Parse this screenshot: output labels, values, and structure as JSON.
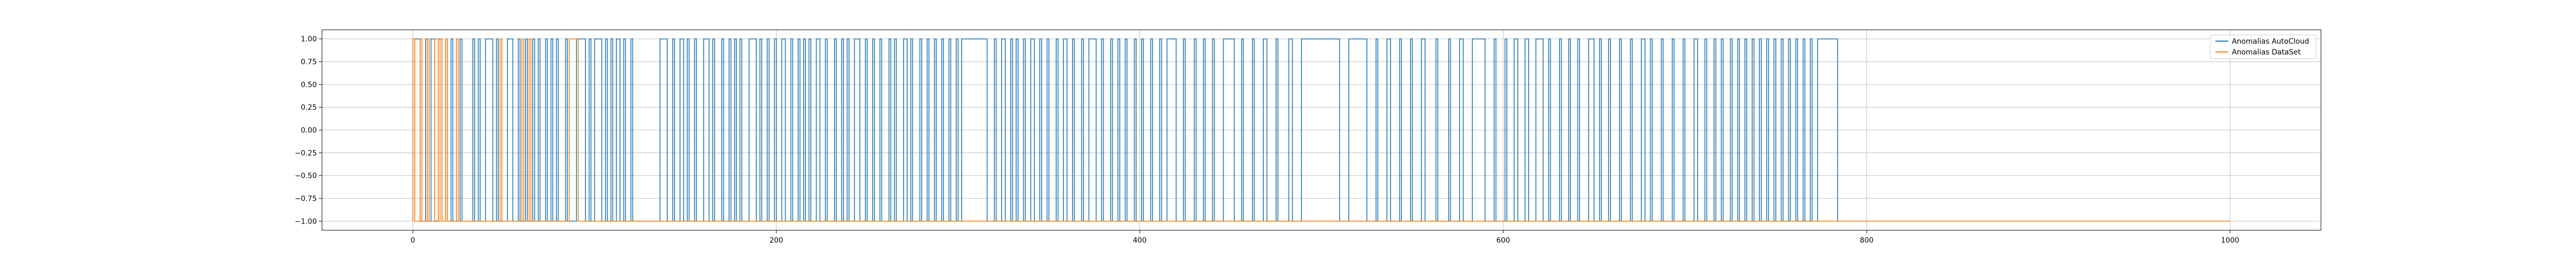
{
  "chart_data": {
    "type": "line",
    "title": "",
    "xlabel": "",
    "ylabel": "",
    "xlim": [
      -50,
      1050
    ],
    "ylim": [
      -1.1,
      1.1
    ],
    "grid": true,
    "legend_position": "top-right",
    "x_ticks": [
      0,
      200,
      400,
      600,
      800,
      1000
    ],
    "x_tick_labels": [
      "0",
      "200",
      "400",
      "600",
      "800",
      "1000"
    ],
    "y_ticks": [
      1.0,
      0.75,
      0.5,
      0.25,
      0.0,
      -0.25,
      -0.5,
      -0.75,
      -1.0
    ],
    "y_tick_labels": [
      "1.00",
      "0.75",
      "0.50",
      "0.25",
      "0.00",
      "−0.25",
      "−0.50",
      "−0.75",
      "−1.00"
    ],
    "series": [
      {
        "name": "Anomalias AutoCloud",
        "color": "#1f77b4",
        "x_range": [
          0,
          784
        ],
        "high_segments": [
          [
            0,
            4
          ],
          [
            7,
            8
          ],
          [
            10,
            12
          ],
          [
            14,
            16
          ],
          [
            18,
            19
          ],
          [
            21,
            22
          ],
          [
            26,
            27
          ],
          [
            33,
            34
          ],
          [
            36,
            37
          ],
          [
            40,
            44
          ],
          [
            46,
            47
          ],
          [
            52,
            55
          ],
          [
            58,
            59
          ],
          [
            62,
            63
          ],
          [
            66,
            67
          ],
          [
            69,
            70
          ],
          [
            73,
            74
          ],
          [
            76,
            77
          ],
          [
            79,
            80
          ],
          [
            84,
            85
          ],
          [
            90,
            95
          ],
          [
            97,
            98
          ],
          [
            100,
            104
          ],
          [
            106,
            107
          ],
          [
            109,
            110
          ],
          [
            112,
            114
          ],
          [
            116,
            117
          ],
          [
            120,
            121
          ],
          [
            136,
            140
          ],
          [
            143,
            144
          ],
          [
            147,
            149
          ],
          [
            151,
            152
          ],
          [
            155,
            156
          ],
          [
            160,
            163
          ],
          [
            165,
            166
          ],
          [
            170,
            171
          ],
          [
            174,
            175
          ],
          [
            177,
            178
          ],
          [
            180,
            181
          ],
          [
            185,
            189
          ],
          [
            191,
            192
          ],
          [
            195,
            196
          ],
          [
            199,
            200
          ],
          [
            203,
            205
          ],
          [
            208,
            209
          ],
          [
            212,
            213
          ],
          [
            215,
            216
          ],
          [
            218,
            219
          ],
          [
            222,
            224
          ],
          [
            227,
            228
          ],
          [
            232,
            233
          ],
          [
            236,
            237
          ],
          [
            239,
            240
          ],
          [
            243,
            246
          ],
          [
            249,
            250
          ],
          [
            253,
            254
          ],
          [
            257,
            258
          ],
          [
            262,
            263
          ],
          [
            265,
            266
          ],
          [
            270,
            272
          ],
          [
            274,
            275
          ],
          [
            279,
            280
          ],
          [
            283,
            284
          ],
          [
            287,
            288
          ],
          [
            291,
            292
          ],
          [
            295,
            296
          ],
          [
            299,
            300
          ],
          [
            302,
            316
          ],
          [
            320,
            321
          ],
          [
            324,
            326
          ],
          [
            329,
            330
          ],
          [
            332,
            333
          ],
          [
            336,
            337
          ],
          [
            340,
            342
          ],
          [
            345,
            346
          ],
          [
            349,
            350
          ],
          [
            354,
            355
          ],
          [
            358,
            360
          ],
          [
            363,
            364
          ],
          [
            368,
            369
          ],
          [
            372,
            376
          ],
          [
            379,
            380
          ],
          [
            384,
            385
          ],
          [
            388,
            389
          ],
          [
            392,
            393
          ],
          [
            397,
            398
          ],
          [
            401,
            402
          ],
          [
            406,
            407
          ],
          [
            411,
            412
          ],
          [
            415,
            420
          ],
          [
            424,
            425
          ],
          [
            430,
            431
          ],
          [
            435,
            436
          ],
          [
            440,
            441
          ],
          [
            446,
            452
          ],
          [
            456,
            457
          ],
          [
            462,
            463
          ],
          [
            468,
            470
          ],
          [
            475,
            476
          ],
          [
            482,
            484
          ],
          [
            489,
            510
          ],
          [
            515,
            525
          ],
          [
            530,
            531
          ],
          [
            536,
            538
          ],
          [
            543,
            544
          ],
          [
            549,
            550
          ],
          [
            555,
            557
          ],
          [
            563,
            564
          ],
          [
            570,
            571
          ],
          [
            576,
            578
          ],
          [
            583,
            590
          ],
          [
            595,
            596
          ],
          [
            601,
            602
          ],
          [
            606,
            608
          ],
          [
            612,
            614
          ],
          [
            618,
            622
          ],
          [
            625,
            626
          ],
          [
            631,
            632
          ],
          [
            636,
            637
          ],
          [
            641,
            642
          ],
          [
            647,
            650
          ],
          [
            653,
            654
          ],
          [
            658,
            659
          ],
          [
            664,
            665
          ],
          [
            670,
            671
          ],
          [
            676,
            678
          ],
          [
            681,
            682
          ],
          [
            687,
            688
          ],
          [
            693,
            694
          ],
          [
            699,
            700
          ],
          [
            705,
            707
          ],
          [
            711,
            712
          ],
          [
            716,
            717
          ],
          [
            720,
            721
          ],
          [
            725,
            726
          ],
          [
            729,
            730
          ],
          [
            733,
            734
          ],
          [
            737,
            738
          ],
          [
            741,
            742
          ],
          [
            745,
            746
          ],
          [
            749,
            750
          ],
          [
            753,
            754
          ],
          [
            757,
            758
          ],
          [
            761,
            762
          ],
          [
            765,
            766
          ],
          [
            769,
            770
          ],
          [
            773,
            784
          ]
        ]
      },
      {
        "name": "Anomalias DataSet",
        "color": "#ff7f0e",
        "x_range": [
          0,
          1000
        ],
        "high_segments": [
          [
            0,
            1
          ],
          [
            4,
            5
          ],
          [
            8,
            9
          ],
          [
            12,
            14
          ],
          [
            15,
            16
          ],
          [
            18,
            19
          ],
          [
            24,
            25
          ],
          [
            48,
            49
          ],
          [
            60,
            61
          ],
          [
            64,
            65
          ],
          [
            86,
            91
          ]
        ]
      }
    ]
  }
}
